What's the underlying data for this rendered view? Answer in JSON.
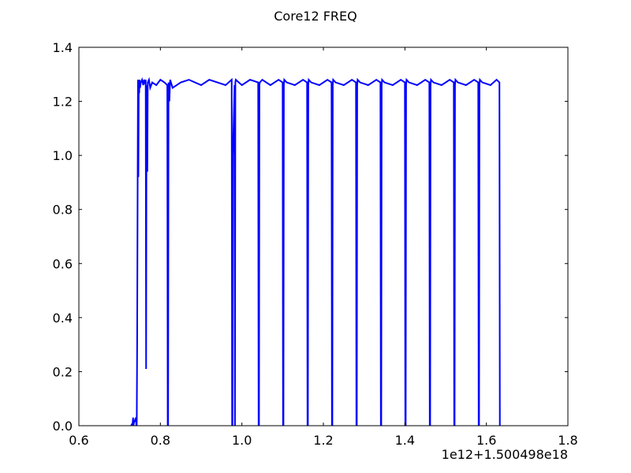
{
  "chart_data": {
    "type": "line",
    "title": "Core12 FREQ",
    "xlabel": "",
    "ylabel": "",
    "x_offset_label": "1e12+1.500498e18",
    "xlim": [
      0.6,
      1.8
    ],
    "ylim": [
      0.0,
      1.4
    ],
    "x_ticks": [
      0.6,
      0.8,
      1.0,
      1.2,
      1.4,
      1.6,
      1.8
    ],
    "x_tick_labels": [
      "0.6",
      "0.8",
      "1.0",
      "1.2",
      "1.4",
      "1.6",
      "1.8"
    ],
    "y_ticks": [
      0.0,
      0.2,
      0.4,
      0.6,
      0.8,
      1.0,
      1.2,
      1.4
    ],
    "y_tick_labels": [
      "0.0",
      "0.2",
      "0.4",
      "0.6",
      "0.8",
      "1.0",
      "1.2",
      "1.4"
    ],
    "grid": false,
    "legend": "none",
    "series": [
      {
        "color": "#0000ff",
        "x": [
          0.727,
          0.728,
          0.732,
          0.733,
          0.734,
          0.735,
          0.74,
          0.741,
          0.742,
          0.743,
          0.745,
          0.746,
          0.747,
          0.748,
          0.749,
          0.75,
          0.752,
          0.755,
          0.758,
          0.76,
          0.762,
          0.764,
          0.765,
          0.766,
          0.767,
          0.768,
          0.769,
          0.772,
          0.775,
          0.78,
          0.79,
          0.8,
          0.81,
          0.817,
          0.818,
          0.819,
          0.82,
          0.822,
          0.824,
          0.83,
          0.85,
          0.87,
          0.9,
          0.92,
          0.94,
          0.96,
          0.975,
          0.976,
          0.977,
          0.978,
          0.982,
          0.983,
          0.984,
          0.985,
          1.0,
          1.02,
          1.04,
          1.041,
          1.042,
          1.043,
          1.044,
          1.05,
          1.07,
          1.09,
          1.1,
          1.101,
          1.102,
          1.103,
          1.104,
          1.11,
          1.13,
          1.15,
          1.16,
          1.161,
          1.162,
          1.163,
          1.164,
          1.17,
          1.19,
          1.21,
          1.22,
          1.221,
          1.222,
          1.223,
          1.224,
          1.23,
          1.25,
          1.27,
          1.28,
          1.281,
          1.282,
          1.283,
          1.284,
          1.29,
          1.31,
          1.33,
          1.34,
          1.341,
          1.342,
          1.343,
          1.344,
          1.35,
          1.37,
          1.39,
          1.4,
          1.401,
          1.402,
          1.403,
          1.404,
          1.41,
          1.43,
          1.45,
          1.46,
          1.461,
          1.462,
          1.463,
          1.464,
          1.47,
          1.49,
          1.51,
          1.52,
          1.521,
          1.522,
          1.523,
          1.524,
          1.53,
          1.55,
          1.57,
          1.58,
          1.581,
          1.582,
          1.583,
          1.584,
          1.59,
          1.61,
          1.625,
          1.632,
          1.633
        ],
        "y": [
          0.0,
          0.0,
          0.01,
          0.03,
          0.0,
          0.01,
          0.03,
          0.0,
          0.0,
          0.3,
          1.28,
          0.92,
          1.27,
          1.23,
          1.28,
          1.25,
          1.27,
          1.28,
          1.26,
          1.28,
          1.27,
          1.28,
          0.21,
          1.25,
          1.26,
          0.94,
          1.27,
          1.28,
          1.25,
          1.27,
          1.26,
          1.28,
          1.27,
          1.26,
          0.0,
          0.0,
          1.27,
          1.2,
          1.28,
          1.25,
          1.27,
          1.28,
          1.26,
          1.28,
          1.27,
          1.26,
          1.28,
          0.0,
          0.0,
          1.0,
          1.26,
          0.0,
          1.27,
          1.28,
          1.26,
          1.28,
          1.27,
          0.0,
          0.0,
          1.26,
          1.27,
          1.28,
          1.26,
          1.28,
          1.27,
          0.0,
          0.0,
          1.26,
          1.28,
          1.27,
          1.26,
          1.28,
          1.27,
          0.0,
          0.0,
          1.26,
          1.28,
          1.27,
          1.26,
          1.28,
          1.27,
          0.0,
          0.0,
          1.26,
          1.28,
          1.27,
          1.26,
          1.28,
          1.27,
          0.0,
          0.0,
          1.26,
          1.28,
          1.27,
          1.26,
          1.28,
          1.27,
          0.0,
          0.0,
          1.26,
          1.28,
          1.27,
          1.26,
          1.28,
          1.27,
          0.0,
          0.0,
          1.26,
          1.28,
          1.27,
          1.26,
          1.28,
          1.27,
          0.0,
          0.0,
          1.26,
          1.28,
          1.27,
          1.26,
          1.28,
          1.27,
          0.0,
          0.0,
          1.26,
          1.28,
          1.27,
          1.26,
          1.28,
          1.27,
          0.0,
          0.0,
          1.26,
          1.28,
          1.27,
          1.26,
          1.28,
          1.27,
          0.0
        ]
      }
    ]
  }
}
